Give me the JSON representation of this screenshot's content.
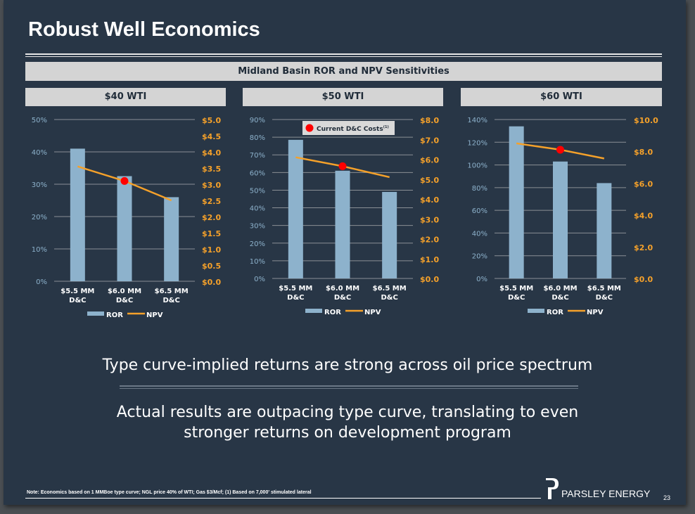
{
  "title": "Robust Well Economics",
  "banner": "Midland Basin ROR and NPV Sensitivities",
  "colors": {
    "bar": "#8db2cc",
    "line": "#f5a12a",
    "dot": "#ff0000",
    "left_axis": "#8db2cc",
    "right_axis": "#f5a12a",
    "grid": "#8a8f95"
  },
  "callout": "Current D&C Costs",
  "callout_sup": "(1)",
  "chart_data": [
    {
      "type": "bar",
      "title": "$40 WTI",
      "categories": [
        "$5.5 MM|D&C",
        "$6.0 MM|D&C",
        "$6.5 MM|D&C"
      ],
      "series": [
        {
          "name": "ROR",
          "axis": "left",
          "values": [
            41,
            32.5,
            26
          ]
        },
        {
          "name": "NPV",
          "axis": "right",
          "type": "line",
          "values": [
            3.55,
            3.1,
            2.5
          ]
        }
      ],
      "ylim": [
        0,
        50
      ],
      "yticks": [
        "0%",
        "10%",
        "20%",
        "30%",
        "40%",
        "50%"
      ],
      "y2lim": [
        0,
        5
      ],
      "y2ticks": [
        "$0.0",
        "$0.5",
        "$1.0",
        "$1.5",
        "$2.0",
        "$2.5",
        "$3.0",
        "$3.5",
        "$4.0",
        "$4.5",
        "$5.0"
      ],
      "highlight_index": 1,
      "grid": true,
      "legend": "bottom",
      "legend_labels": [
        "ROR",
        "NPV"
      ]
    },
    {
      "type": "bar",
      "title": "$50 WTI",
      "categories": [
        "$5.5 MM|D&C",
        "$6.0 MM|D&C",
        "$6.5 MM|D&C"
      ],
      "series": [
        {
          "name": "ROR",
          "axis": "left",
          "values": [
            78.5,
            61,
            49
          ]
        },
        {
          "name": "NPV",
          "axis": "right",
          "type": "line",
          "values": [
            6.1,
            5.65,
            5.1
          ]
        }
      ],
      "ylim": [
        0,
        90
      ],
      "yticks": [
        "0%",
        "10%",
        "20%",
        "30%",
        "40%",
        "50%",
        "60%",
        "70%",
        "80%",
        "90%"
      ],
      "y2lim": [
        0,
        8
      ],
      "y2ticks": [
        "$0.0",
        "$1.0",
        "$2.0",
        "$3.0",
        "$4.0",
        "$5.0",
        "$6.0",
        "$7.0",
        "$8.0"
      ],
      "highlight_index": 1,
      "grid": true,
      "legend": "bottom",
      "legend_labels": [
        "ROR",
        "NPV"
      ]
    },
    {
      "type": "bar",
      "title": "$60 WTI",
      "categories": [
        "$5.5 MM|D&C",
        "$6.0 MM|D&C",
        "$6.5 MM|D&C"
      ],
      "series": [
        {
          "name": "ROR",
          "axis": "left",
          "values": [
            134,
            103,
            84
          ]
        },
        {
          "name": "NPV",
          "axis": "right",
          "type": "line",
          "values": [
            8.5,
            8.1,
            7.55
          ]
        }
      ],
      "ylim": [
        0,
        140
      ],
      "yticks": [
        "0%",
        "20%",
        "40%",
        "60%",
        "80%",
        "100%",
        "120%",
        "140%"
      ],
      "y2lim": [
        0,
        10
      ],
      "y2ticks": [
        "$0.0",
        "$2.0",
        "$4.0",
        "$6.0",
        "$8.0",
        "$10.0"
      ],
      "highlight_index": 1,
      "grid": true,
      "legend": "bottom",
      "legend_labels": [
        "ROR",
        "NPV"
      ]
    }
  ],
  "message1": "Type curve-implied returns are strong across oil price spectrum",
  "message2_line1": "Actual results are outpacing type curve, translating to even",
  "message2_line2": "stronger returns on development program",
  "note": "Note: Economics based on 1 MMBoe type curve; NGL price 40% of WTI; Gas $3/Mcf; (1) Based on 7,000' stimulated lateral",
  "logo_text": "PARSLEY ENERGY",
  "page_number": "23"
}
